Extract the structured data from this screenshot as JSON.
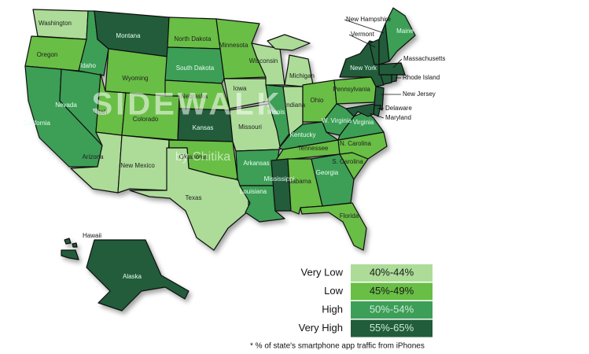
{
  "legend": [
    {
      "label": "Very Low",
      "range": "40%-44%",
      "color": "#acdc98"
    },
    {
      "label": "Low",
      "range": "45%-49%",
      "color": "#69be45"
    },
    {
      "label": "High",
      "range": "50%-54%",
      "color": "#3d9e57"
    },
    {
      "label": "Very High",
      "range": "55%-65%",
      "color": "#215c3b"
    }
  ],
  "states": [
    {
      "name": "Washington",
      "level": 0
    },
    {
      "name": "Oregon",
      "level": 1
    },
    {
      "name": "California",
      "level": 2
    },
    {
      "name": "Nevada",
      "level": 2
    },
    {
      "name": "Idaho",
      "level": 2
    },
    {
      "name": "Montana",
      "level": 3
    },
    {
      "name": "Wyoming",
      "level": 1
    },
    {
      "name": "Utah",
      "level": 1
    },
    {
      "name": "Arizona",
      "level": 0
    },
    {
      "name": "Colorado",
      "level": 1
    },
    {
      "name": "New Mexico",
      "level": 0
    },
    {
      "name": "North Dakota",
      "level": 1
    },
    {
      "name": "South Dakota",
      "level": 2
    },
    {
      "name": "Nebraska",
      "level": 1
    },
    {
      "name": "Kansas",
      "level": 3
    },
    {
      "name": "Oklahoma",
      "level": 1
    },
    {
      "name": "Texas",
      "level": 0
    },
    {
      "name": "Minnesota",
      "level": 1
    },
    {
      "name": "Iowa",
      "level": 0
    },
    {
      "name": "Missouri",
      "level": 0
    },
    {
      "name": "Arkansas",
      "level": 2
    },
    {
      "name": "Louisiana",
      "level": 2
    },
    {
      "name": "Wisconsin",
      "level": 0
    },
    {
      "name": "Illinois",
      "level": 2
    },
    {
      "name": "Michigan",
      "level": 0
    },
    {
      "name": "Indiana",
      "level": 0
    },
    {
      "name": "Ohio",
      "level": 1
    },
    {
      "name": "Kentucky",
      "level": 2
    },
    {
      "name": "Tennessee",
      "level": 1
    },
    {
      "name": "Mississippi",
      "level": 3
    },
    {
      "name": "Alabama",
      "level": 1
    },
    {
      "name": "Georgia",
      "level": 2
    },
    {
      "name": "Florida",
      "level": 1
    },
    {
      "name": "S. Carolina",
      "level": 1
    },
    {
      "name": "N. Carolina",
      "level": 1
    },
    {
      "name": "Virginia",
      "level": 2
    },
    {
      "name": "W. Virginia",
      "level": 2
    },
    {
      "name": "Pennsylvania",
      "level": 1
    },
    {
      "name": "New York",
      "level": 3
    },
    {
      "name": "New Jersey",
      "level": 3
    },
    {
      "name": "Delaware",
      "level": 3
    },
    {
      "name": "Maryland",
      "level": 3
    },
    {
      "name": "Massachusetts",
      "level": 3
    },
    {
      "name": "Rhode Island",
      "level": 3
    },
    {
      "name": "Vermont",
      "level": 3
    },
    {
      "name": "New Hampshire",
      "level": 3
    },
    {
      "name": "Maine",
      "level": 2
    },
    {
      "name": "Alaska",
      "level": 3
    },
    {
      "name": "Hawaii",
      "level": 3
    }
  ],
  "watermark": {
    "title": "SIDEWALK",
    "subtitle": "by Chitika"
  },
  "footnote": "* % of state's smartphone app traffic from iPhones"
}
